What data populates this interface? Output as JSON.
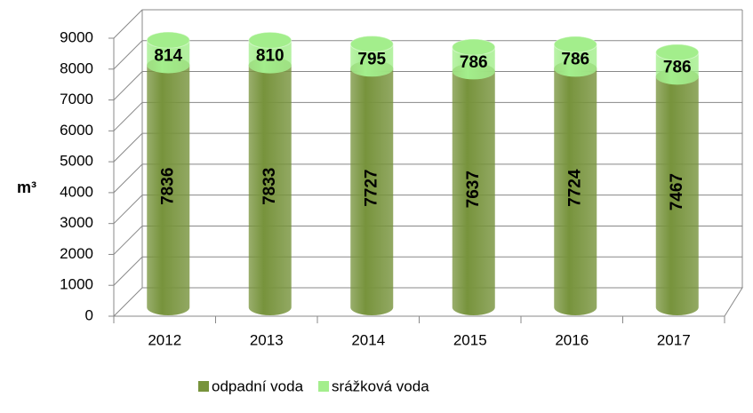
{
  "chart_data": {
    "type": "bar3d_stacked",
    "y_label": "m³",
    "categories": [
      "2012",
      "2013",
      "2014",
      "2015",
      "2016",
      "2017"
    ],
    "series": [
      {
        "name": "odpadní voda",
        "color": "#77933c",
        "values": [
          7836,
          7833,
          7727,
          7637,
          7724,
          7467
        ]
      },
      {
        "name": "srážková voda",
        "color": "#a3ee8c",
        "values": [
          814,
          810,
          795,
          786,
          786,
          786
        ]
      }
    ],
    "ylim": [
      0,
      9000
    ],
    "yticks": [
      0,
      1000,
      2000,
      3000,
      4000,
      5000,
      6000,
      7000,
      8000,
      9000
    ],
    "grid": true,
    "legend": "bottom"
  }
}
